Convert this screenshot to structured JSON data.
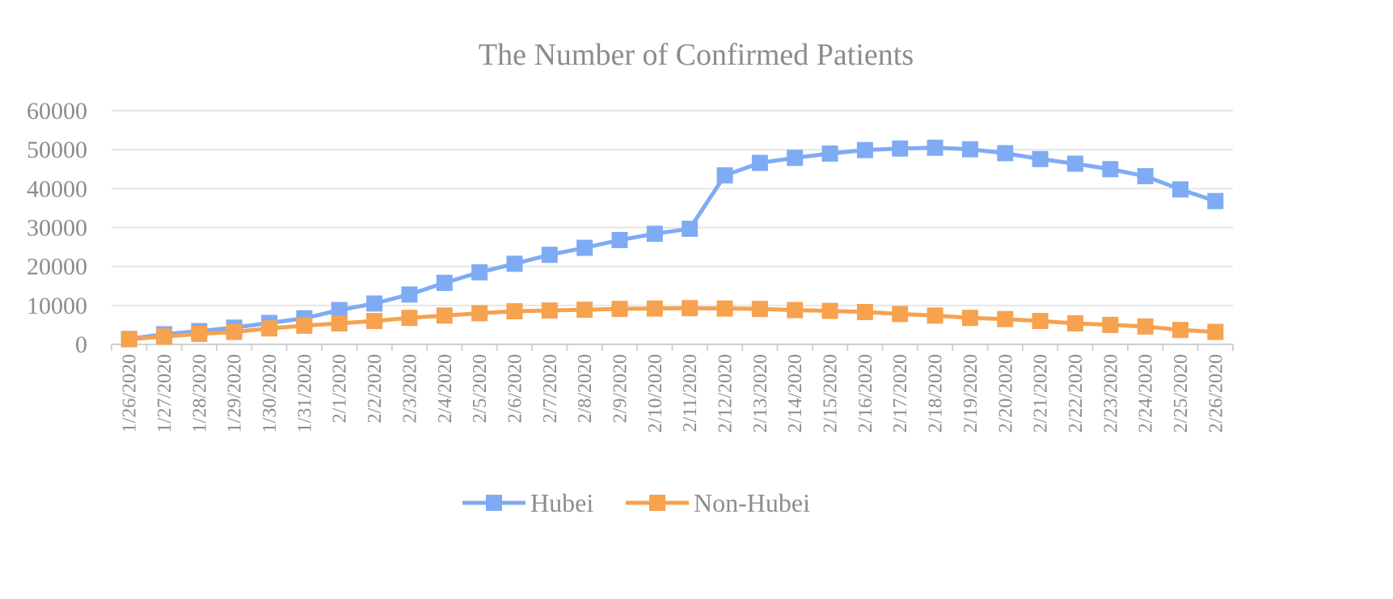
{
  "chart_data": {
    "type": "line",
    "title": "The Number of Confirmed Patients",
    "xlabel": "",
    "ylabel": "",
    "ylim": [
      0,
      60000
    ],
    "yticks": [
      "0",
      "10000",
      "20000",
      "30000",
      "40000",
      "50000",
      "60000"
    ],
    "grid": true,
    "legend_position": "bottom",
    "categories": [
      "1/26/2020",
      "1/27/2020",
      "1/28/2020",
      "1/29/2020",
      "1/30/2020",
      "1/31/2020",
      "2/1/2020",
      "2/2/2020",
      "2/3/2020",
      "2/4/2020",
      "2/5/2020",
      "2/6/2020",
      "2/7/2020",
      "2/8/2020",
      "2/9/2020",
      "2/10/2020",
      "2/11/2020",
      "2/12/2020",
      "2/13/2020",
      "2/14/2020",
      "2/15/2020",
      "2/16/2020",
      "2/17/2020",
      "2/18/2020",
      "2/19/2020",
      "2/20/2020",
      "2/21/2020",
      "2/22/2020",
      "2/23/2020",
      "2/24/2020",
      "2/25/2020",
      "2/26/2020"
    ],
    "series": [
      {
        "name": "Hubei",
        "color": "#7fabf4",
        "values": [
          1400,
          2600,
          3400,
          4300,
          5500,
          6700,
          8800,
          10500,
          12800,
          15800,
          18500,
          20700,
          23000,
          24800,
          26800,
          28400,
          29700,
          43400,
          46600,
          47900,
          49000,
          49900,
          50300,
          50500,
          50100,
          49100,
          47600,
          46400,
          45000,
          43200,
          39800,
          36800
        ]
      },
      {
        "name": "Non-Hubei",
        "color": "#f6a24f",
        "values": [
          1300,
          2000,
          2700,
          3200,
          4100,
          4800,
          5400,
          6000,
          6800,
          7400,
          8000,
          8500,
          8700,
          8900,
          9100,
          9200,
          9300,
          9200,
          9100,
          8800,
          8600,
          8300,
          7800,
          7400,
          6800,
          6500,
          6000,
          5400,
          5000,
          4600,
          3700,
          3200
        ]
      }
    ]
  }
}
